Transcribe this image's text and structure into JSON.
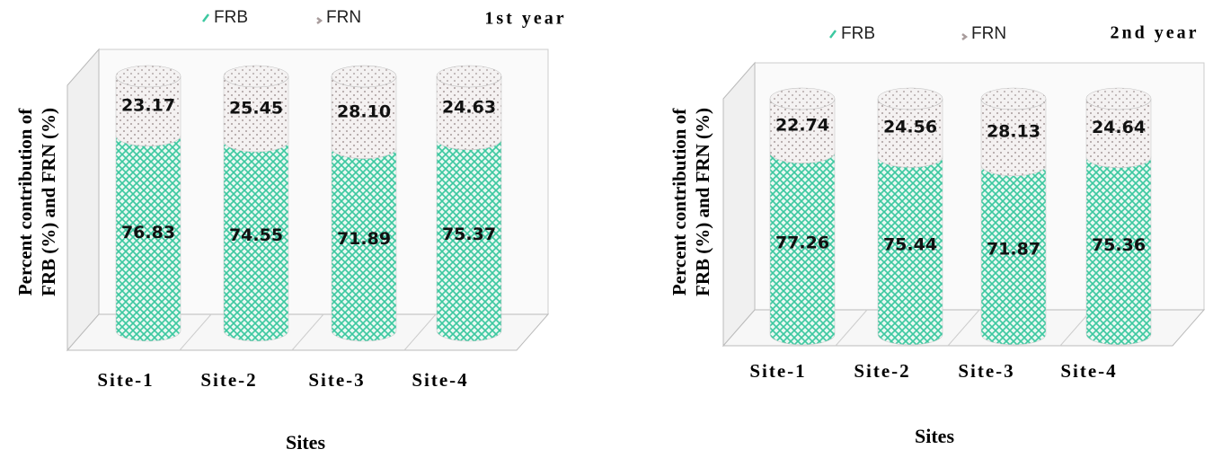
{
  "chart_data": [
    {
      "type": "bar",
      "stacked": true,
      "title": "1st year",
      "y_label": [
        "Percent contribution of",
        "FRB (%) and FRN (%)"
      ],
      "x_label": "Sites",
      "categories": [
        "Site-1",
        "Site-2",
        "Site-3",
        "Site-4"
      ],
      "series": [
        {
          "name": "FRB",
          "color": "#3cc8a0",
          "values": [
            76.83,
            74.55,
            71.89,
            75.37
          ],
          "value_labels": [
            "76.83",
            "74.55",
            "71.89",
            "75.37"
          ]
        },
        {
          "name": "FRN",
          "color": "#a89c9c",
          "values": [
            23.17,
            25.45,
            28.1,
            24.63
          ],
          "value_labels": [
            "23.17",
            "25.45",
            "28.10",
            "24.63"
          ]
        }
      ]
    },
    {
      "type": "bar",
      "stacked": true,
      "title": "2nd year",
      "y_label": [
        "Percent contribution of",
        "FRB (%) and FRN (%)"
      ],
      "x_label": "Sites",
      "categories": [
        "Site-1",
        "Site-2",
        "Site-3",
        "Site-4"
      ],
      "series": [
        {
          "name": "FRB",
          "color": "#3cc8a0",
          "values": [
            77.26,
            75.44,
            71.87,
            75.36
          ],
          "value_labels": [
            "77.26",
            "75.44",
            "71.87",
            "75.36"
          ]
        },
        {
          "name": "FRN",
          "color": "#a89c9c",
          "values": [
            22.74,
            24.56,
            28.13,
            24.64
          ],
          "value_labels": [
            "22.74",
            "24.56",
            "28.13",
            "24.64"
          ]
        }
      ]
    }
  ]
}
